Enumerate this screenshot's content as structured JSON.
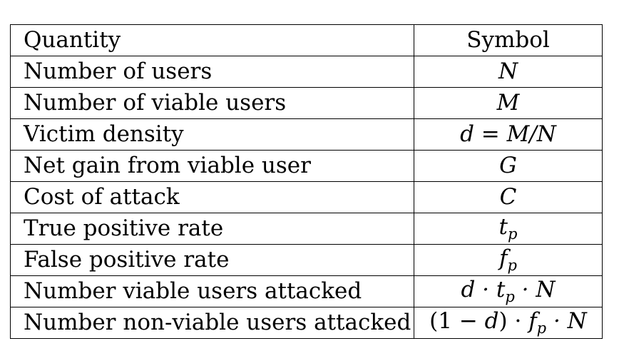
{
  "table": {
    "headers": {
      "quantity": "Quantity",
      "symbol": "Symbol"
    },
    "rows": [
      {
        "quantity": "Number of users",
        "symbol": {
          "main": "N"
        }
      },
      {
        "quantity": "Number of viable users",
        "symbol": {
          "main": "M"
        }
      },
      {
        "quantity": "Victim density",
        "symbol": {
          "main": "d = M/N"
        }
      },
      {
        "quantity": "Net gain from viable user",
        "symbol": {
          "main": "G"
        }
      },
      {
        "quantity": "Cost of attack",
        "symbol": {
          "main": "C"
        }
      },
      {
        "quantity": "True positive rate",
        "symbol": {
          "main": "t",
          "sub": "p"
        }
      },
      {
        "quantity": "False positive rate",
        "symbol": {
          "main": "f",
          "sub": "p"
        }
      },
      {
        "quantity": "Number viable users attacked",
        "symbol": {
          "a": "d · t",
          "sub": "p",
          "b": " · N"
        }
      },
      {
        "quantity": "Number non-viable users attacked",
        "symbol": {
          "open": "(1 − ",
          "a": "d",
          "close": ") · ",
          "f": "f",
          "sub": "p",
          "b": " · N"
        }
      }
    ]
  }
}
